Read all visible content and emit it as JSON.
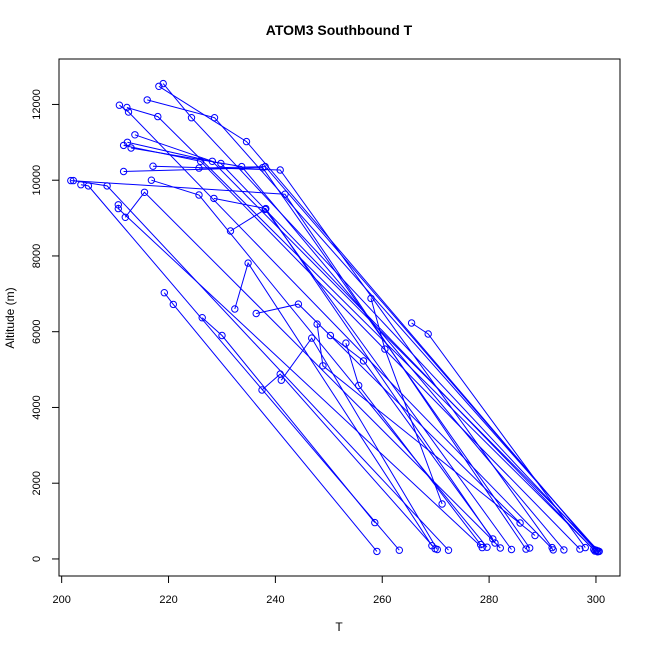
{
  "chart_data": {
    "type": "line",
    "title": "ATOM3 Southbound T",
    "xlabel": "T",
    "ylabel": "Altitude (m)",
    "xlim": [
      199.5,
      304.5
    ],
    "ylim": [
      -450,
      13200
    ],
    "xticks": [
      200,
      220,
      240,
      260,
      280,
      300
    ],
    "yticks": [
      0,
      2000,
      4000,
      6000,
      8000,
      10000,
      12000
    ],
    "color": "#0000ff",
    "grid": false,
    "legend": "none",
    "series": [
      {
        "points": [
          [
            219.0,
            12550
          ],
          [
            224.3,
            11650
          ],
          [
            300.1,
            220
          ]
        ]
      },
      {
        "points": [
          [
            218.2,
            12480
          ],
          [
            234.6,
            11020
          ],
          [
            300.0,
            230
          ]
        ]
      },
      {
        "points": [
          [
            216.0,
            12120
          ],
          [
            228.6,
            11650
          ],
          [
            300.4,
            210
          ]
        ]
      },
      {
        "points": [
          [
            210.8,
            11980
          ],
          [
            212.5,
            11800
          ],
          [
            292.0,
            240
          ]
        ]
      },
      {
        "points": [
          [
            212.2,
            11920
          ],
          [
            218.0,
            11680
          ],
          [
            299.6,
            250
          ]
        ]
      },
      {
        "points": [
          [
            213.7,
            11200
          ],
          [
            228.2,
            10500
          ],
          [
            300.6,
            200
          ]
        ]
      },
      {
        "points": [
          [
            211.6,
            10920
          ],
          [
            226.0,
            10500
          ],
          [
            297.0,
            260
          ]
        ]
      },
      {
        "points": [
          [
            212.3,
            11000
          ],
          [
            229.8,
            10440
          ],
          [
            299.8,
            210
          ]
        ]
      },
      {
        "points": [
          [
            213.0,
            10850
          ],
          [
            233.7,
            10360
          ],
          [
            294.0,
            240
          ]
        ]
      },
      {
        "points": [
          [
            217.1,
            10370
          ],
          [
            240.9,
            10270
          ],
          [
            291.8,
            300
          ]
        ]
      },
      {
        "points": [
          [
            225.7,
            10320
          ],
          [
            238.1,
            10360
          ],
          [
            300.3,
            190
          ]
        ]
      },
      {
        "points": [
          [
            211.6,
            10230
          ],
          [
            237.6,
            10330
          ],
          [
            287.6,
            290
          ]
        ]
      },
      {
        "points": [
          [
            202.2,
            9990
          ],
          [
            208.5,
            9850
          ],
          [
            272.4,
            230
          ]
        ]
      },
      {
        "points": [
          [
            203.6,
            9880
          ],
          [
            205.0,
            9850
          ],
          [
            263.2,
            230
          ]
        ]
      },
      {
        "points": [
          [
            201.7,
            9990
          ],
          [
            241.8,
            9630
          ],
          [
            286.9,
            260
          ]
        ]
      },
      {
        "points": [
          [
            210.6,
            9350
          ],
          [
            210.6,
            9250
          ],
          [
            278.7,
            300
          ]
        ]
      },
      {
        "points": [
          [
            211.9,
            9020
          ],
          [
            215.5,
            9680
          ],
          [
            282.1,
            290
          ]
        ]
      },
      {
        "points": [
          [
            216.8,
            10000
          ],
          [
            225.7,
            9610
          ],
          [
            279.6,
            310
          ]
        ]
      },
      {
        "points": [
          [
            219.2,
            7030
          ],
          [
            220.9,
            6720
          ],
          [
            259.0,
            200
          ]
        ]
      },
      {
        "points": [
          [
            228.5,
            9520
          ],
          [
            238.2,
            9250
          ],
          [
            281.1,
            420
          ]
        ]
      },
      {
        "points": [
          [
            231.6,
            8660
          ],
          [
            238.1,
            9230
          ],
          [
            284.2,
            250
          ]
        ]
      },
      {
        "points": [
          [
            226.3,
            6370
          ],
          [
            230.0,
            5900
          ],
          [
            258.6,
            960
          ]
        ]
      },
      {
        "points": [
          [
            232.4,
            6600
          ],
          [
            234.9,
            7810
          ],
          [
            269.3,
            350
          ]
        ]
      },
      {
        "points": [
          [
            237.5,
            4460
          ],
          [
            240.9,
            4880
          ],
          [
            269.9,
            270
          ]
        ]
      },
      {
        "points": [
          [
            241.1,
            4720
          ],
          [
            246.8,
            5830
          ],
          [
            270.3,
            250
          ]
        ]
      },
      {
        "points": [
          [
            247.8,
            6200
          ],
          [
            248.9,
            5100
          ],
          [
            288.6,
            620
          ]
        ]
      },
      {
        "points": [
          [
            236.4,
            6480
          ],
          [
            244.3,
            6730
          ],
          [
            285.8,
            950
          ]
        ]
      },
      {
        "points": [
          [
            250.3,
            5900
          ],
          [
            256.5,
            5230
          ],
          [
            280.7,
            530
          ]
        ]
      },
      {
        "points": [
          [
            253.2,
            5700
          ],
          [
            255.6,
            4580
          ],
          [
            278.4,
            380
          ]
        ]
      },
      {
        "points": [
          [
            265.5,
            6230
          ],
          [
            268.6,
            5940
          ],
          [
            298.0,
            300
          ]
        ]
      },
      {
        "points": [
          [
            257.9,
            6880
          ],
          [
            260.5,
            5540
          ],
          [
            271.2,
            1450
          ]
        ]
      }
    ]
  }
}
